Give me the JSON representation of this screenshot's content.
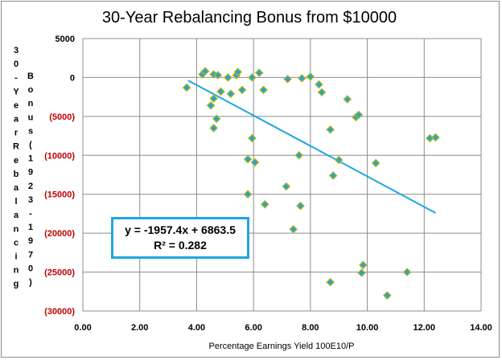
{
  "chart_data": {
    "type": "scatter",
    "title": "30-Year Rebalancing Bonus from $10000",
    "xlabel": "Percentage Earnings Yield 100E10/P",
    "ylabel": "30-Year Rebalancing Bonus (1923-1970)",
    "xlim": [
      0,
      14
    ],
    "ylim": [
      -30000,
      5000
    ],
    "x_ticks": [
      "0.00",
      "2.00",
      "4.00",
      "6.00",
      "8.00",
      "10.00",
      "12.00",
      "14.00"
    ],
    "y_ticks": [
      "5000",
      "0",
      "(5000)",
      "(10000)",
      "(15000)",
      "(20000)",
      "(25000)",
      "(30000)"
    ],
    "grid": true,
    "legend": "none",
    "marker_color": "#1fa6e0",
    "marker_edge_color": "#c9b400",
    "trendline_color": "#1fa6e0",
    "trendline": {
      "slope": -1957.4,
      "intercept": 6863.5,
      "x_range": [
        3.7,
        12.4
      ],
      "equation": "y = -1957.4x + 6863.5",
      "r_squared": "R² = 0.282"
    },
    "points": [
      {
        "x": 3.65,
        "y": -1300
      },
      {
        "x": 4.2,
        "y": 400
      },
      {
        "x": 4.3,
        "y": 800
      },
      {
        "x": 4.5,
        "y": -3600
      },
      {
        "x": 4.6,
        "y": -6500
      },
      {
        "x": 4.6,
        "y": -2700
      },
      {
        "x": 4.6,
        "y": 400
      },
      {
        "x": 4.7,
        "y": -5300
      },
      {
        "x": 4.75,
        "y": 300
      },
      {
        "x": 4.85,
        "y": -1800
      },
      {
        "x": 5.1,
        "y": 0
      },
      {
        "x": 5.2,
        "y": -2100
      },
      {
        "x": 5.4,
        "y": 300
      },
      {
        "x": 5.45,
        "y": 700
      },
      {
        "x": 5.6,
        "y": -1600
      },
      {
        "x": 5.8,
        "y": -10500
      },
      {
        "x": 5.8,
        "y": -15000
      },
      {
        "x": 5.95,
        "y": 0
      },
      {
        "x": 5.95,
        "y": -7800
      },
      {
        "x": 6.05,
        "y": -10900
      },
      {
        "x": 6.2,
        "y": 600
      },
      {
        "x": 6.35,
        "y": -1600
      },
      {
        "x": 6.4,
        "y": -16300
      },
      {
        "x": 7.15,
        "y": -14000
      },
      {
        "x": 7.2,
        "y": -200
      },
      {
        "x": 7.4,
        "y": -19500
      },
      {
        "x": 7.6,
        "y": -10000
      },
      {
        "x": 7.65,
        "y": -16500
      },
      {
        "x": 7.7,
        "y": -100
      },
      {
        "x": 8.0,
        "y": 100
      },
      {
        "x": 8.3,
        "y": -900
      },
      {
        "x": 8.4,
        "y": -1900
      },
      {
        "x": 8.7,
        "y": -26300
      },
      {
        "x": 8.7,
        "y": -6700
      },
      {
        "x": 8.8,
        "y": -12600
      },
      {
        "x": 9.0,
        "y": -10600
      },
      {
        "x": 9.3,
        "y": -2800
      },
      {
        "x": 9.6,
        "y": -5100
      },
      {
        "x": 9.7,
        "y": -4800
      },
      {
        "x": 9.8,
        "y": -25100
      },
      {
        "x": 9.85,
        "y": -24100
      },
      {
        "x": 10.3,
        "y": -11000
      },
      {
        "x": 10.7,
        "y": -28000
      },
      {
        "x": 11.4,
        "y": -25000
      },
      {
        "x": 12.2,
        "y": -7800
      },
      {
        "x": 12.4,
        "y": -7700
      }
    ]
  }
}
